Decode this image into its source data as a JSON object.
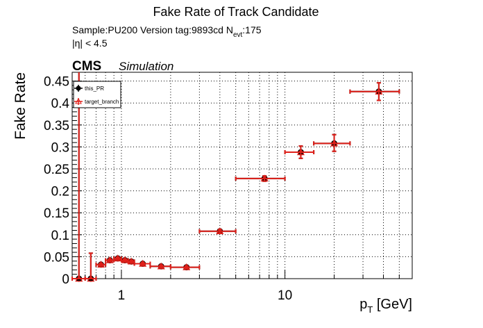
{
  "chart_data": {
    "type": "scatter",
    "title": "Fake Rate of Track Candidate",
    "info": {
      "sample": "Sample:PU200   Version tag:9893cd  N",
      "nevt_sub": "evt",
      "nevt_value": ":175",
      "eta_cut": "|η| < 4.5"
    },
    "cms_label": "CMS",
    "cms_sublabel": "Simulation",
    "xlabel": "p",
    "xlabel_sub": "T",
    "xlabel_unit": " [GeV]",
    "ylabel": "Fake Rate",
    "x_scale": "log",
    "xlim": [
      0.5,
      60
    ],
    "ylim": [
      0,
      0.47
    ],
    "y_ticks": [
      0,
      0.05,
      0.1,
      0.15,
      0.2,
      0.25,
      0.3,
      0.35,
      0.4,
      0.45
    ],
    "y_tick_labels": [
      "0",
      "0.05",
      "0.1",
      "0.15",
      "0.2",
      "0.25",
      "0.3",
      "0.35",
      "0.4",
      "0.45"
    ],
    "x_tick_labels": [
      {
        "value": 1,
        "label": "1"
      },
      {
        "value": 10,
        "label": "10"
      }
    ],
    "grid": true,
    "legend_position": "top-left",
    "series": [
      {
        "name": "this_PR",
        "color": "#000000",
        "marker": "circle",
        "points": [
          {
            "x": 0.55,
            "xlo": 0.5,
            "xhi": 0.6,
            "y": 0.0,
            "ylo": 0.0,
            "yhi": 0.47
          },
          {
            "x": 0.65,
            "xlo": 0.6,
            "xhi": 0.7,
            "y": 0.0,
            "ylo": 0.0,
            "yhi": 0.058
          },
          {
            "x": 0.75,
            "xlo": 0.7,
            "xhi": 0.8,
            "y": 0.032,
            "ylo": 0.029,
            "yhi": 0.035
          },
          {
            "x": 0.85,
            "xlo": 0.8,
            "xhi": 0.9,
            "y": 0.042,
            "ylo": 0.039,
            "yhi": 0.045
          },
          {
            "x": 0.95,
            "xlo": 0.9,
            "xhi": 1.0,
            "y": 0.046,
            "ylo": 0.043,
            "yhi": 0.049
          },
          {
            "x": 1.05,
            "xlo": 1.0,
            "xhi": 1.1,
            "y": 0.042,
            "ylo": 0.039,
            "yhi": 0.045
          },
          {
            "x": 1.15,
            "xlo": 1.1,
            "xhi": 1.2,
            "y": 0.039,
            "ylo": 0.036,
            "yhi": 0.042
          },
          {
            "x": 1.35,
            "xlo": 1.2,
            "xhi": 1.5,
            "y": 0.034,
            "ylo": 0.031,
            "yhi": 0.037
          },
          {
            "x": 1.75,
            "xlo": 1.5,
            "xhi": 2.0,
            "y": 0.028,
            "ylo": 0.025,
            "yhi": 0.031
          },
          {
            "x": 2.5,
            "xlo": 2.0,
            "xhi": 3.0,
            "y": 0.026,
            "ylo": 0.023,
            "yhi": 0.029
          },
          {
            "x": 4.0,
            "xlo": 3.0,
            "xhi": 5.0,
            "y": 0.108,
            "ylo": 0.104,
            "yhi": 0.112
          },
          {
            "x": 7.5,
            "xlo": 5.0,
            "xhi": 10.0,
            "y": 0.228,
            "ylo": 0.222,
            "yhi": 0.234
          },
          {
            "x": 12.5,
            "xlo": 10.0,
            "xhi": 15.0,
            "y": 0.288,
            "ylo": 0.274,
            "yhi": 0.302
          },
          {
            "x": 20.0,
            "xlo": 15.0,
            "xhi": 25.0,
            "y": 0.308,
            "ylo": 0.29,
            "yhi": 0.328
          },
          {
            "x": 37.5,
            "xlo": 25.0,
            "xhi": 50.0,
            "y": 0.426,
            "ylo": 0.406,
            "yhi": 0.446
          }
        ]
      },
      {
        "name": "target_branch",
        "color": "#e0201a",
        "marker": "triangle",
        "points": [
          {
            "x": 0.55,
            "xlo": 0.5,
            "xhi": 0.6,
            "y": 0.0,
            "ylo": 0.0,
            "yhi": 0.47
          },
          {
            "x": 0.65,
            "xlo": 0.6,
            "xhi": 0.7,
            "y": 0.0,
            "ylo": 0.0,
            "yhi": 0.058
          },
          {
            "x": 0.75,
            "xlo": 0.7,
            "xhi": 0.8,
            "y": 0.032,
            "ylo": 0.029,
            "yhi": 0.035
          },
          {
            "x": 0.85,
            "xlo": 0.8,
            "xhi": 0.9,
            "y": 0.042,
            "ylo": 0.039,
            "yhi": 0.045
          },
          {
            "x": 0.95,
            "xlo": 0.9,
            "xhi": 1.0,
            "y": 0.046,
            "ylo": 0.043,
            "yhi": 0.049
          },
          {
            "x": 1.05,
            "xlo": 1.0,
            "xhi": 1.1,
            "y": 0.042,
            "ylo": 0.039,
            "yhi": 0.045
          },
          {
            "x": 1.15,
            "xlo": 1.1,
            "xhi": 1.2,
            "y": 0.039,
            "ylo": 0.036,
            "yhi": 0.042
          },
          {
            "x": 1.35,
            "xlo": 1.2,
            "xhi": 1.5,
            "y": 0.034,
            "ylo": 0.031,
            "yhi": 0.037
          },
          {
            "x": 1.75,
            "xlo": 1.5,
            "xhi": 2.0,
            "y": 0.028,
            "ylo": 0.025,
            "yhi": 0.031
          },
          {
            "x": 2.5,
            "xlo": 2.0,
            "xhi": 3.0,
            "y": 0.026,
            "ylo": 0.023,
            "yhi": 0.029
          },
          {
            "x": 4.0,
            "xlo": 3.0,
            "xhi": 5.0,
            "y": 0.108,
            "ylo": 0.104,
            "yhi": 0.112
          },
          {
            "x": 7.5,
            "xlo": 5.0,
            "xhi": 10.0,
            "y": 0.228,
            "ylo": 0.222,
            "yhi": 0.234
          },
          {
            "x": 12.5,
            "xlo": 10.0,
            "xhi": 15.0,
            "y": 0.288,
            "ylo": 0.274,
            "yhi": 0.302
          },
          {
            "x": 20.0,
            "xlo": 15.0,
            "xhi": 25.0,
            "y": 0.308,
            "ylo": 0.29,
            "yhi": 0.328
          },
          {
            "x": 37.5,
            "xlo": 25.0,
            "xhi": 50.0,
            "y": 0.426,
            "ylo": 0.406,
            "yhi": 0.446
          }
        ]
      }
    ]
  }
}
